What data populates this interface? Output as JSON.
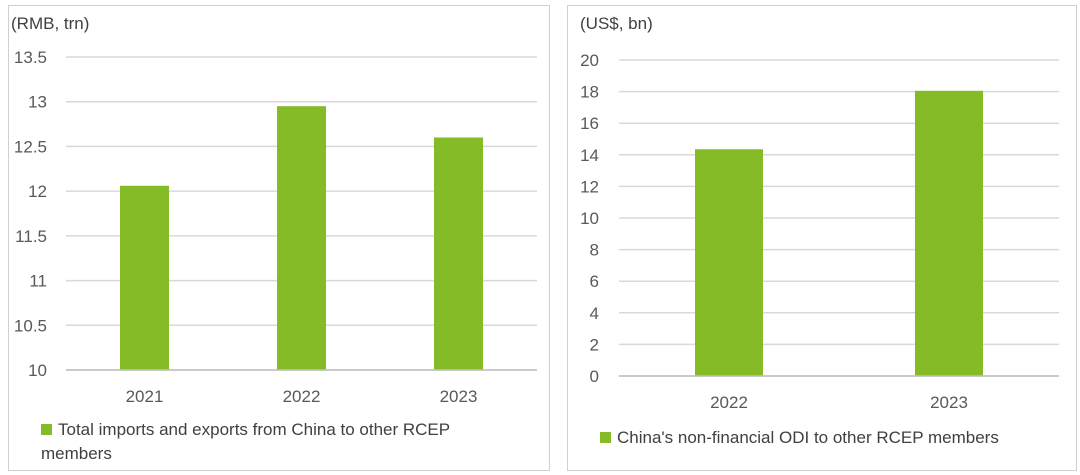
{
  "chart_data": [
    {
      "type": "bar",
      "unit_label": "(RMB, trn)",
      "categories": [
        "2021",
        "2022",
        "2023"
      ],
      "series": [
        {
          "name": "Total imports and exports from China to other RCEP members",
          "values": [
            12.06,
            12.95,
            12.6
          ]
        }
      ],
      "ylim": [
        10,
        13.5
      ],
      "yticks": [
        "10",
        "10.5",
        "11",
        "11.5",
        "12",
        "12.5",
        "13",
        "13.5"
      ],
      "grid": true,
      "legend": "bottom",
      "color": "#84bb26",
      "legend_lines": [
        "Total imports and exports from China to other RCEP",
        "members"
      ]
    },
    {
      "type": "bar",
      "unit_label": "(US$, bn)",
      "categories": [
        "2022",
        "2023"
      ],
      "series": [
        {
          "name": "China's non-financial ODI to other RCEP members",
          "values": [
            14.35,
            18.05
          ]
        }
      ],
      "ylim": [
        0,
        20
      ],
      "yticks": [
        "0",
        "2",
        "4",
        "6",
        "8",
        "10",
        "12",
        "14",
        "16",
        "18",
        "20"
      ],
      "grid": true,
      "legend": "bottom",
      "color": "#84bb26"
    }
  ]
}
